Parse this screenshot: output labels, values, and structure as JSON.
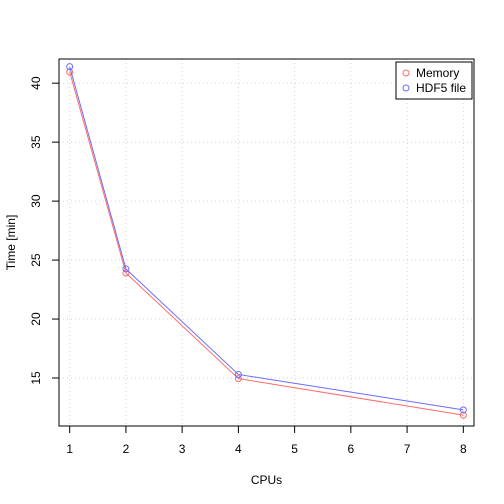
{
  "chart_data": {
    "type": "line",
    "xlabel": "CPUs",
    "ylabel": "Time [min]",
    "xlim": [
      0.81,
      8.19
    ],
    "ylim": [
      10.93,
      42.05
    ],
    "xticks": [
      1,
      2,
      3,
      4,
      5,
      6,
      7,
      8
    ],
    "yticks": [
      15,
      20,
      25,
      30,
      35,
      40
    ],
    "grid": true,
    "legend_position": "top-right",
    "x": [
      1,
      2,
      4,
      8
    ],
    "series": [
      {
        "name": "Memory",
        "color": "#ff6b6b",
        "values": [
          40.95,
          23.9,
          14.95,
          11.85
        ]
      },
      {
        "name": "HDF5 file",
        "color": "#6b6bff",
        "values": [
          41.4,
          24.25,
          15.3,
          12.3
        ]
      }
    ]
  }
}
